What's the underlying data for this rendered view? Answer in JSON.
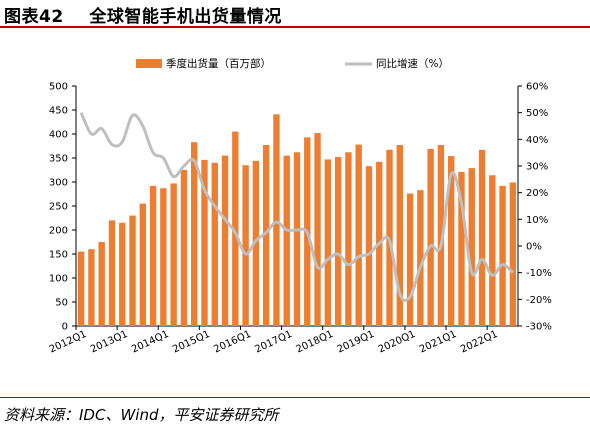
{
  "header": {
    "figure_no": "图表42",
    "title": "全球智能手机出货量情况"
  },
  "source": "资料来源：IDC、Wind，平安证券研究所",
  "colors": {
    "bar": "#ED7D31",
    "line": "#BFBFBF",
    "rule": "#C00000"
  },
  "chart_data": {
    "type": "bar",
    "legend_position": "top",
    "grid": false,
    "series": [
      {
        "name": "季度出货量（百万部）",
        "type": "bar",
        "axis": "left",
        "values": [
          155,
          160,
          175,
          220,
          215,
          230,
          255,
          292,
          287,
          297,
          325,
          383,
          346,
          340,
          355,
          405,
          335,
          344,
          377,
          441,
          355,
          362,
          393,
          402,
          347,
          352,
          362,
          378,
          333,
          342,
          367,
          377,
          276,
          283,
          369,
          377,
          354,
          321,
          329,
          367,
          314,
          292,
          299
        ]
      },
      {
        "name": "同比增速（%）",
        "type": "line",
        "axis": "right",
        "values": [
          50,
          42,
          44,
          38,
          39,
          49,
          45,
          35,
          33,
          26,
          30,
          32,
          21,
          15,
          10,
          5,
          -3,
          2,
          5,
          9,
          6,
          6,
          5,
          -8,
          -5,
          -3,
          -7,
          -4,
          -3,
          1,
          2,
          -18,
          -19,
          -8,
          0,
          0,
          27,
          16,
          -10,
          -5,
          -11,
          -7,
          -10
        ]
      }
    ],
    "x_tick_labels": [
      "2012Q1",
      "2013Q1",
      "2014Q1",
      "2015Q1",
      "2016Q1",
      "2017Q1",
      "2018Q1",
      "2019Q1",
      "2020Q1",
      "2021Q1",
      "2022Q1"
    ],
    "y_left": {
      "ticks": [
        "0",
        "50",
        "100",
        "150",
        "200",
        "250",
        "300",
        "350",
        "400",
        "450",
        "500"
      ],
      "range": [
        0,
        500
      ]
    },
    "y_right": {
      "ticks": [
        "-30%",
        "-20%",
        "-10%",
        "0%",
        "10%",
        "20%",
        "30%",
        "40%",
        "50%",
        "60%"
      ],
      "range": [
        -30,
        60
      ]
    }
  }
}
